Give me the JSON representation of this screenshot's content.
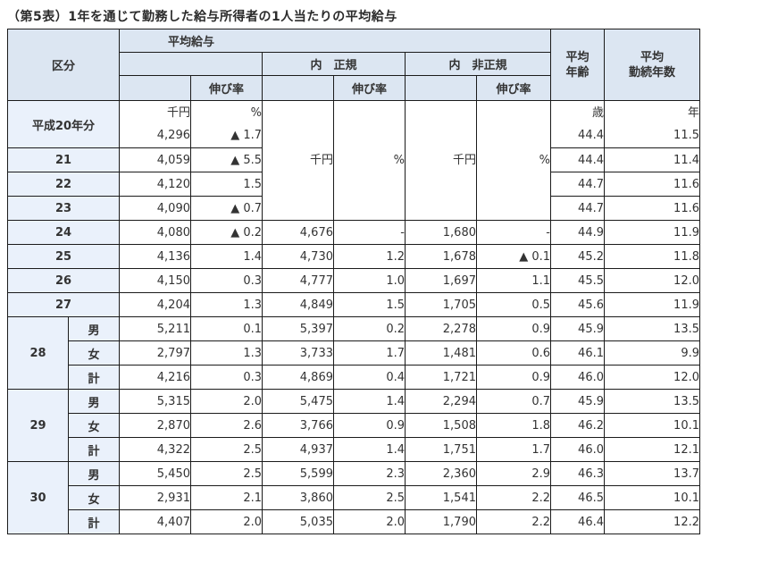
{
  "title": "（第5表）1年を通じて勤務した給与所得者の1人当たりの平均給与",
  "colors": {
    "header_bg": "#dce6f2",
    "label_bg": "#eaf1fb",
    "border": "#1b1b1b",
    "text": "#333333"
  },
  "header": {
    "kubun": "区分",
    "avg_salary": "平均給与",
    "growth_rate": "伸び率",
    "regular": "内　正規",
    "non_regular": "内　非正規",
    "avg_age_line1": "平均",
    "avg_age_line2": "年齢",
    "avg_tenure_line1": "平均",
    "avg_tenure_line2": "勤続年数"
  },
  "units": {
    "salary": "千円",
    "rate": "%",
    "age": "歳",
    "tenure": "年"
  },
  "rows": [
    {
      "kind": "first",
      "label": "平成20年分",
      "salary": "4,296",
      "salary_rate": "▲ 1.7",
      "age": "44.4",
      "tenure": "11.5"
    },
    {
      "kind": "simple",
      "label": "21",
      "salary": "4,059",
      "salary_rate": "▲ 5.5",
      "age": "44.4",
      "tenure": "11.4"
    },
    {
      "kind": "simple",
      "label": "22",
      "salary": "4,120",
      "salary_rate": "1.5",
      "age": "44.7",
      "tenure": "11.6"
    },
    {
      "kind": "simple",
      "label": "23",
      "salary": "4,090",
      "salary_rate": "▲ 0.7",
      "age": "44.7",
      "tenure": "11.6"
    },
    {
      "kind": "full",
      "label": "24",
      "salary": "4,080",
      "salary_rate": "▲ 0.2",
      "regular": "4,676",
      "regular_rate": "-",
      "non_regular": "1,680",
      "non_regular_rate": "-",
      "age": "44.9",
      "tenure": "11.9"
    },
    {
      "kind": "full",
      "label": "25",
      "salary": "4,136",
      "salary_rate": "1.4",
      "regular": "4,730",
      "regular_rate": "1.2",
      "non_regular": "1,678",
      "non_regular_rate": "▲ 0.1",
      "age": "45.2",
      "tenure": "11.8"
    },
    {
      "kind": "full",
      "label": "26",
      "salary": "4,150",
      "salary_rate": "0.3",
      "regular": "4,777",
      "regular_rate": "1.0",
      "non_regular": "1,697",
      "non_regular_rate": "1.1",
      "age": "45.5",
      "tenure": "12.0"
    },
    {
      "kind": "full",
      "label": "27",
      "salary": "4,204",
      "salary_rate": "1.3",
      "regular": "4,849",
      "regular_rate": "1.5",
      "non_regular": "1,705",
      "non_regular_rate": "0.5",
      "age": "45.6",
      "tenure": "11.9"
    },
    {
      "kind": "group",
      "label": "28",
      "members": [
        {
          "gender": "男",
          "salary": "5,211",
          "salary_rate": "0.1",
          "regular": "5,397",
          "regular_rate": "0.2",
          "non_regular": "2,278",
          "non_regular_rate": "0.9",
          "age": "45.9",
          "tenure": "13.5"
        },
        {
          "gender": "女",
          "salary": "2,797",
          "salary_rate": "1.3",
          "regular": "3,733",
          "regular_rate": "1.7",
          "non_regular": "1,481",
          "non_regular_rate": "0.6",
          "age": "46.1",
          "tenure": "9.9"
        },
        {
          "gender": "計",
          "salary": "4,216",
          "salary_rate": "0.3",
          "regular": "4,869",
          "regular_rate": "0.4",
          "non_regular": "1,721",
          "non_regular_rate": "0.9",
          "age": "46.0",
          "tenure": "12.0"
        }
      ]
    },
    {
      "kind": "group",
      "label": "29",
      "members": [
        {
          "gender": "男",
          "salary": "5,315",
          "salary_rate": "2.0",
          "regular": "5,475",
          "regular_rate": "1.4",
          "non_regular": "2,294",
          "non_regular_rate": "0.7",
          "age": "45.9",
          "tenure": "13.5"
        },
        {
          "gender": "女",
          "salary": "2,870",
          "salary_rate": "2.6",
          "regular": "3,766",
          "regular_rate": "0.9",
          "non_regular": "1,508",
          "non_regular_rate": "1.8",
          "age": "46.2",
          "tenure": "10.1"
        },
        {
          "gender": "計",
          "salary": "4,322",
          "salary_rate": "2.5",
          "regular": "4,937",
          "regular_rate": "1.4",
          "non_regular": "1,751",
          "non_regular_rate": "1.7",
          "age": "46.0",
          "tenure": "12.1"
        }
      ]
    },
    {
      "kind": "group",
      "label": "30",
      "members": [
        {
          "gender": "男",
          "salary": "5,450",
          "salary_rate": "2.5",
          "regular": "5,599",
          "regular_rate": "2.3",
          "non_regular": "2,360",
          "non_regular_rate": "2.9",
          "age": "46.3",
          "tenure": "13.7"
        },
        {
          "gender": "女",
          "salary": "2,931",
          "salary_rate": "2.1",
          "regular": "3,860",
          "regular_rate": "2.5",
          "non_regular": "1,541",
          "non_regular_rate": "2.2",
          "age": "46.5",
          "tenure": "10.1"
        },
        {
          "gender": "計",
          "salary": "4,407",
          "salary_rate": "2.0",
          "regular": "5,035",
          "regular_rate": "2.0",
          "non_regular": "1,790",
          "non_regular_rate": "2.2",
          "age": "46.4",
          "tenure": "12.2"
        }
      ]
    }
  ]
}
